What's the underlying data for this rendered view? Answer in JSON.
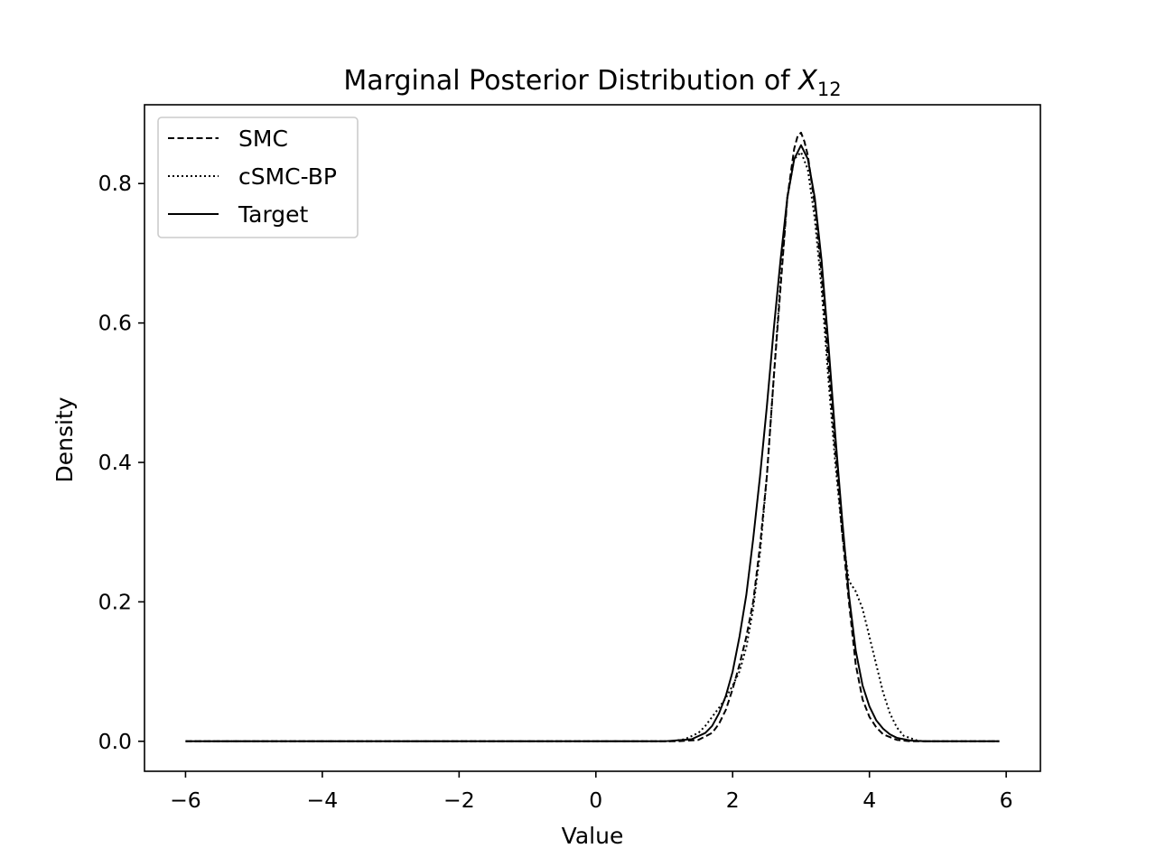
{
  "chart_data": {
    "type": "line",
    "title": "Marginal Posterior Distribution of ",
    "title_var": "X",
    "title_sub": "12",
    "xlabel": "Value",
    "ylabel": "Density",
    "xlim": [
      -6.6,
      6.5
    ],
    "ylim": [
      -0.043,
      0.913
    ],
    "xticks": [
      -6,
      -4,
      -2,
      0,
      2,
      4,
      6
    ],
    "xtick_labels": [
      "−6",
      "−4",
      "−2",
      "0",
      "2",
      "4",
      "6"
    ],
    "yticks": [
      0.0,
      0.2,
      0.4,
      0.6,
      0.8
    ],
    "ytick_labels": [
      "0.0",
      "0.2",
      "0.4",
      "0.6",
      "0.8"
    ],
    "grid": false,
    "legend_position": "top-left",
    "series": [
      {
        "name": "SMC",
        "style": "dashed",
        "color": "#000000",
        "points": [
          [
            -6,
            0
          ],
          [
            1.2,
            0
          ],
          [
            1.5,
            0.002
          ],
          [
            1.7,
            0.012
          ],
          [
            1.8,
            0.025
          ],
          [
            1.9,
            0.045
          ],
          [
            2.0,
            0.075
          ],
          [
            2.1,
            0.11
          ],
          [
            2.2,
            0.15
          ],
          [
            2.3,
            0.2
          ],
          [
            2.4,
            0.28
          ],
          [
            2.5,
            0.38
          ],
          [
            2.6,
            0.52
          ],
          [
            2.7,
            0.65
          ],
          [
            2.8,
            0.78
          ],
          [
            2.9,
            0.85
          ],
          [
            2.95,
            0.868
          ],
          [
            3.0,
            0.873
          ],
          [
            3.05,
            0.86
          ],
          [
            3.1,
            0.84
          ],
          [
            3.2,
            0.77
          ],
          [
            3.3,
            0.67
          ],
          [
            3.4,
            0.54
          ],
          [
            3.5,
            0.42
          ],
          [
            3.6,
            0.3
          ],
          [
            3.7,
            0.2
          ],
          [
            3.8,
            0.11
          ],
          [
            3.9,
            0.06
          ],
          [
            4.0,
            0.035
          ],
          [
            4.1,
            0.02
          ],
          [
            4.2,
            0.01
          ],
          [
            4.4,
            0.002
          ],
          [
            4.6,
            0
          ],
          [
            5.9,
            0
          ]
        ]
      },
      {
        "name": "cSMC-BP",
        "style": "dotted",
        "color": "#000000",
        "points": [
          [
            -6,
            0
          ],
          [
            1.1,
            0
          ],
          [
            1.3,
            0.003
          ],
          [
            1.5,
            0.012
          ],
          [
            1.6,
            0.022
          ],
          [
            1.7,
            0.035
          ],
          [
            1.8,
            0.048
          ],
          [
            1.9,
            0.062
          ],
          [
            2.0,
            0.08
          ],
          [
            2.1,
            0.1
          ],
          [
            2.2,
            0.135
          ],
          [
            2.3,
            0.19
          ],
          [
            2.4,
            0.27
          ],
          [
            2.5,
            0.38
          ],
          [
            2.6,
            0.52
          ],
          [
            2.7,
            0.66
          ],
          [
            2.8,
            0.78
          ],
          [
            2.9,
            0.835
          ],
          [
            3.0,
            0.845
          ],
          [
            3.1,
            0.82
          ],
          [
            3.2,
            0.75
          ],
          [
            3.3,
            0.65
          ],
          [
            3.4,
            0.52
          ],
          [
            3.5,
            0.4
          ],
          [
            3.6,
            0.3
          ],
          [
            3.7,
            0.23
          ],
          [
            3.8,
            0.215
          ],
          [
            3.9,
            0.19
          ],
          [
            4.0,
            0.15
          ],
          [
            4.1,
            0.11
          ],
          [
            4.2,
            0.07
          ],
          [
            4.3,
            0.04
          ],
          [
            4.4,
            0.02
          ],
          [
            4.5,
            0.008
          ],
          [
            4.7,
            0.001
          ],
          [
            4.8,
            0
          ],
          [
            5.9,
            0
          ]
        ]
      },
      {
        "name": "Target",
        "style": "solid",
        "color": "#000000",
        "points": [
          [
            -6,
            0
          ],
          [
            1.0,
            0
          ],
          [
            1.4,
            0.003
          ],
          [
            1.6,
            0.012
          ],
          [
            1.7,
            0.022
          ],
          [
            1.8,
            0.04
          ],
          [
            1.9,
            0.065
          ],
          [
            2.0,
            0.1
          ],
          [
            2.1,
            0.15
          ],
          [
            2.2,
            0.21
          ],
          [
            2.3,
            0.29
          ],
          [
            2.4,
            0.38
          ],
          [
            2.5,
            0.48
          ],
          [
            2.6,
            0.59
          ],
          [
            2.7,
            0.69
          ],
          [
            2.8,
            0.78
          ],
          [
            2.9,
            0.835
          ],
          [
            3.0,
            0.855
          ],
          [
            3.1,
            0.835
          ],
          [
            3.2,
            0.78
          ],
          [
            3.3,
            0.69
          ],
          [
            3.4,
            0.57
          ],
          [
            3.5,
            0.44
          ],
          [
            3.6,
            0.32
          ],
          [
            3.7,
            0.21
          ],
          [
            3.8,
            0.13
          ],
          [
            3.9,
            0.08
          ],
          [
            4.0,
            0.05
          ],
          [
            4.1,
            0.03
          ],
          [
            4.2,
            0.018
          ],
          [
            4.3,
            0.01
          ],
          [
            4.4,
            0.005
          ],
          [
            4.6,
            0.001
          ],
          [
            4.8,
            0
          ],
          [
            5.9,
            0
          ]
        ]
      }
    ]
  }
}
